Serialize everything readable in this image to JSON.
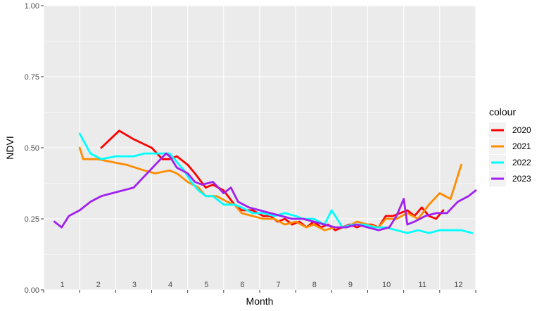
{
  "chart_data": {
    "type": "line",
    "title": "",
    "xlabel": "Month",
    "ylabel": "NDVI",
    "xlim": [
      0.5,
      12.5
    ],
    "ylim": [
      0,
      1
    ],
    "x_tick_labels": [
      "1",
      "2",
      "3",
      "4",
      "5",
      "6",
      "7",
      "8",
      "9",
      "10",
      "11",
      "12"
    ],
    "y_ticks": [
      0,
      0.25,
      0.5,
      0.75,
      1
    ],
    "y_tick_labels": [
      "0.00",
      "0.25",
      "0.50",
      "0.75",
      "1.00"
    ],
    "grid": true,
    "legend_title": "colour",
    "legend_position": "right",
    "colors": {
      "panel_bg": "#ebebeb",
      "grid": "#ffffff",
      "2020": "#ff0000",
      "2021": "#ff8c00",
      "2022": "#00ffff",
      "2023": "#a020f0"
    },
    "series": [
      {
        "name": "2020",
        "color": "#ff0000",
        "x": [
          2.1,
          2.6,
          3.0,
          3.5,
          3.8,
          4.0,
          4.2,
          4.5,
          4.7,
          5.0,
          5.2,
          5.5,
          5.8,
          6.0,
          6.3,
          6.6,
          6.8,
          7.0,
          7.2,
          7.4,
          7.6,
          7.8,
          8.0,
          8.2,
          8.4,
          8.6,
          8.8,
          9.0,
          9.2,
          9.4,
          9.6,
          9.8,
          10.0,
          10.2,
          10.4,
          10.6,
          10.8,
          11.0,
          11.2,
          11.4,
          11.6
        ],
        "y": [
          0.5,
          0.56,
          0.53,
          0.5,
          0.46,
          0.46,
          0.47,
          0.44,
          0.41,
          0.36,
          0.37,
          0.35,
          0.3,
          0.28,
          0.28,
          0.26,
          0.26,
          0.24,
          0.25,
          0.23,
          0.24,
          0.22,
          0.24,
          0.22,
          0.23,
          0.21,
          0.22,
          0.23,
          0.22,
          0.23,
          0.23,
          0.22,
          0.26,
          0.26,
          0.27,
          0.28,
          0.26,
          0.29,
          0.26,
          0.25,
          0.28
        ]
      },
      {
        "name": "2021",
        "color": "#ff8c00",
        "x": [
          1.5,
          1.6,
          2.0,
          2.4,
          2.8,
          3.3,
          3.6,
          4.0,
          4.2,
          4.5,
          4.8,
          5.0,
          5.3,
          5.6,
          5.8,
          6.0,
          6.3,
          6.6,
          6.9,
          7.2,
          7.5,
          7.8,
          8.0,
          8.3,
          8.6,
          8.9,
          9.2,
          9.5,
          9.8,
          10.0,
          10.3,
          10.6,
          10.9,
          11.2,
          11.5,
          11.8,
          12.1
        ],
        "y": [
          0.5,
          0.46,
          0.46,
          0.45,
          0.44,
          0.42,
          0.41,
          0.42,
          0.41,
          0.38,
          0.36,
          0.33,
          0.33,
          0.31,
          0.3,
          0.27,
          0.26,
          0.25,
          0.25,
          0.23,
          0.24,
          0.22,
          0.23,
          0.21,
          0.22,
          0.22,
          0.24,
          0.23,
          0.22,
          0.25,
          0.25,
          0.27,
          0.25,
          0.3,
          0.34,
          0.32,
          0.44
        ]
      },
      {
        "name": "2022",
        "color": "#00ffff",
        "x": [
          1.5,
          1.8,
          2.1,
          2.5,
          3.0,
          3.3,
          3.7,
          4.0,
          4.2,
          4.4,
          4.6,
          4.8,
          5.0,
          5.2,
          5.5,
          5.8,
          6.0,
          6.3,
          6.6,
          6.9,
          7.2,
          7.5,
          7.7,
          8.0,
          8.3,
          8.5,
          8.8,
          9.1,
          9.4,
          9.7,
          10.0,
          10.3,
          10.6,
          10.9,
          11.2,
          11.5,
          11.8,
          12.1,
          12.4
        ],
        "y": [
          0.55,
          0.48,
          0.46,
          0.47,
          0.47,
          0.48,
          0.48,
          0.48,
          0.45,
          0.42,
          0.38,
          0.35,
          0.33,
          0.33,
          0.3,
          0.3,
          0.29,
          0.27,
          0.27,
          0.26,
          0.27,
          0.26,
          0.25,
          0.25,
          0.23,
          0.28,
          0.22,
          0.23,
          0.23,
          0.22,
          0.22,
          0.21,
          0.2,
          0.21,
          0.2,
          0.21,
          0.21,
          0.21,
          0.2
        ]
      },
      {
        "name": "2023",
        "color": "#a020f0",
        "x": [
          0.8,
          0.9,
          1.0,
          1.2,
          1.5,
          1.8,
          2.1,
          2.4,
          2.7,
          3.0,
          3.3,
          3.6,
          3.9,
          4.0,
          4.2,
          4.5,
          4.7,
          4.9,
          5.2,
          5.5,
          5.7,
          5.9,
          6.2,
          6.5,
          6.8,
          7.1,
          7.4,
          7.7,
          8.0,
          8.3,
          8.6,
          8.9,
          9.2,
          9.5,
          9.8,
          10.1,
          10.3,
          10.5,
          10.6,
          10.8,
          11.1,
          11.4,
          11.7,
          12.0,
          12.3,
          12.5
        ],
        "y": [
          0.24,
          0.23,
          0.22,
          0.26,
          0.28,
          0.31,
          0.33,
          0.34,
          0.35,
          0.36,
          0.4,
          0.44,
          0.48,
          0.47,
          0.43,
          0.41,
          0.38,
          0.37,
          0.38,
          0.34,
          0.36,
          0.31,
          0.29,
          0.28,
          0.27,
          0.26,
          0.25,
          0.25,
          0.24,
          0.23,
          0.22,
          0.22,
          0.23,
          0.22,
          0.21,
          0.22,
          0.26,
          0.32,
          0.23,
          0.24,
          0.26,
          0.27,
          0.27,
          0.31,
          0.33,
          0.35
        ]
      }
    ]
  }
}
